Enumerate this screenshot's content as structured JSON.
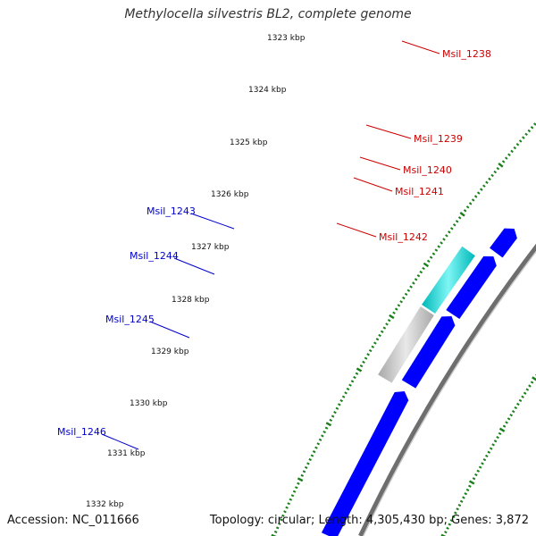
{
  "title": "Methylocella silvestris BL2, complete genome",
  "accession": "Accession: NC_011666",
  "summary": "Topology: circular; Length: 4,305,430 bp; Genes: 3,872",
  "colors": {
    "forward_label": "#cc0000",
    "reverse_label": "#0000cc",
    "backbone": "#888888",
    "ruler": "#1a7f1a"
  },
  "ticks": [
    "1323 kbp",
    "1324 kbp",
    "1325 kbp",
    "1326 kbp",
    "1327 kbp",
    "1328 kbp",
    "1329 kbp",
    "1330 kbp",
    "1331 kbp",
    "1332 kbp"
  ],
  "genes": [
    {
      "name": "Msil_1238",
      "strand": "forward",
      "color": "#ff0000"
    },
    {
      "name": "Msil_1239",
      "strand": "forward",
      "color": "#ff0000"
    },
    {
      "name": "Msil_1240",
      "strand": "forward",
      "color": "#ff0000"
    },
    {
      "name": "Msil_1241",
      "strand": "forward",
      "color": "#ff0000"
    },
    {
      "name": "Msil_1242",
      "strand": "forward",
      "color": "#ff0000"
    },
    {
      "name": "Msil_1243",
      "strand": "reverse",
      "color": "#0000ff"
    },
    {
      "name": "Msil_1244",
      "strand": "reverse",
      "color": "#0000ff"
    },
    {
      "name": "Msil_1245",
      "strand": "reverse",
      "color": "#0000ff"
    },
    {
      "name": "Msil_1246",
      "strand": "reverse",
      "color": "#0000ff"
    }
  ]
}
